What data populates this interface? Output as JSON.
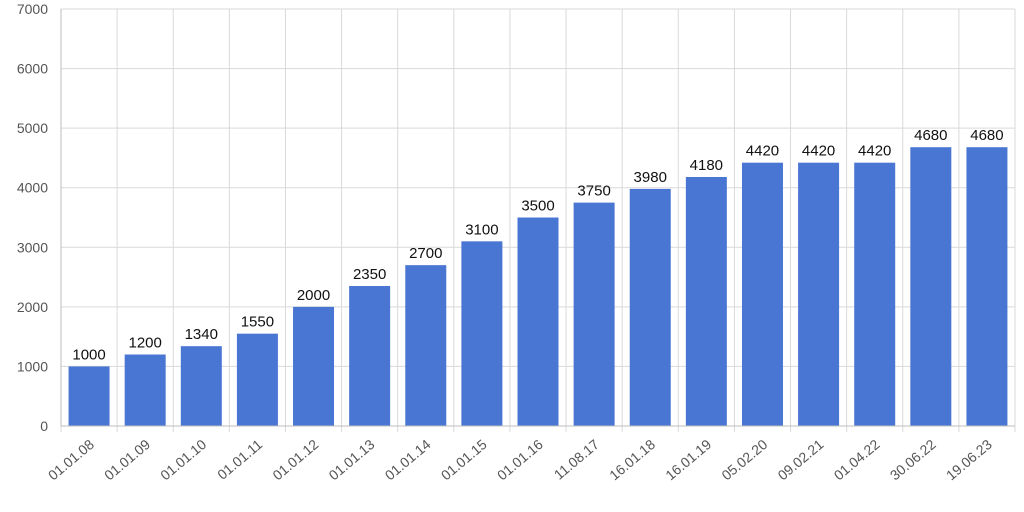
{
  "chart_data": {
    "type": "bar",
    "title": "",
    "xlabel": "",
    "ylabel": "",
    "categories": [
      "01.01.08",
      "01.01.09",
      "01.01.10",
      "01.01.11",
      "01.01.12",
      "01.01.13",
      "01.01.14",
      "01.01.15",
      "01.01.16",
      "11.08.17",
      "16.01.18",
      "16.01.19",
      "05.02.20",
      "09.02.21",
      "01.04.22",
      "30.06.22",
      "19.06.23"
    ],
    "values": [
      1000,
      1200,
      1340,
      1550,
      2000,
      2350,
      2700,
      3100,
      3500,
      3750,
      3980,
      4180,
      4420,
      4420,
      4420,
      4680,
      4680
    ],
    "data_labels": [
      "1000",
      "1200",
      "1340",
      "1550",
      "2000",
      "2350",
      "2700",
      "3100",
      "3500",
      "3750",
      "3980",
      "4180",
      "4420",
      "4420",
      "4420",
      "4680",
      "4680"
    ],
    "ylim": [
      0,
      7000
    ],
    "yticks": [
      0,
      1000,
      2000,
      3000,
      4000,
      5000,
      6000,
      7000
    ],
    "ytick_labels": [
      "0",
      "1000",
      "2000",
      "3000",
      "4000",
      "5000",
      "6000",
      "7000"
    ],
    "grid": true,
    "legend": "none",
    "colors": {
      "bar": "#4a76d3",
      "grid": "#d9d9d9",
      "axis": "#bdbdbd",
      "tick_text": "#555555",
      "data_label_text": "#111111"
    }
  }
}
